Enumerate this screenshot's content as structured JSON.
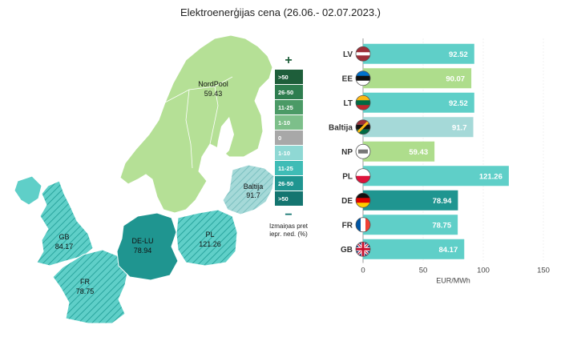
{
  "title": "Elektroenerģijas cena (26.06.- 02.07.2023.)",
  "map": {
    "regions": [
      {
        "name": "NordPool",
        "value": "59.43"
      },
      {
        "name": "Baltija",
        "value": "91.7"
      },
      {
        "name": "DE-LU",
        "value": "78.94"
      },
      {
        "name": "PL",
        "value": "121.26"
      },
      {
        "name": "GB",
        "value": "84.17"
      },
      {
        "name": "FR",
        "value": "78.75"
      }
    ],
    "legend": {
      "plus": "+",
      "minus": "−",
      "cells": [
        ">50",
        "26-50",
        "11-25",
        "1-10",
        "0",
        "1-10",
        "11-25",
        "26-50",
        ">50"
      ],
      "colors": [
        "#1e5e3a",
        "#2e7d4f",
        "#4b9a66",
        "#7dbf8a",
        "#a8a8a8",
        "#8fd8d4",
        "#3fbcb6",
        "#1f9590",
        "#147570"
      ],
      "note_line1": "Izmaiņas pret",
      "note_line2": "iepr. ned. (%)"
    }
  },
  "chart_data": {
    "type": "bar",
    "orientation": "horizontal",
    "categories": [
      "LV",
      "EE",
      "LT",
      "Baltija",
      "NP",
      "PL",
      "DE",
      "FR",
      "GB"
    ],
    "values": [
      92.52,
      90.07,
      92.52,
      91.7,
      59.43,
      121.26,
      78.94,
      78.75,
      84.17
    ],
    "value_labels": [
      "92.52",
      "90.07",
      "92.52",
      "91.7",
      "59.43",
      "121.26",
      "78.94",
      "78.75",
      "84.17"
    ],
    "bar_colors": [
      "#5fcfc8",
      "#aedd8c",
      "#5fcfc8",
      "#a5d9d8",
      "#aedd8c",
      "#5fcfc8",
      "#1f9590",
      "#5fcfc8",
      "#5fcfc8"
    ],
    "flags": [
      "lv-flag",
      "ee-flag",
      "lt-flag",
      "baltic-flag",
      "nordpool-flag",
      "pl-flag",
      "de-flag",
      "fr-flag",
      "gb-flag"
    ],
    "xlim": [
      0,
      150
    ],
    "xticks": [
      0,
      50,
      100,
      150
    ],
    "xtick_labels": [
      "0",
      "50",
      "100",
      "150"
    ],
    "xlabel": "EUR/MWh",
    "title": ""
  }
}
